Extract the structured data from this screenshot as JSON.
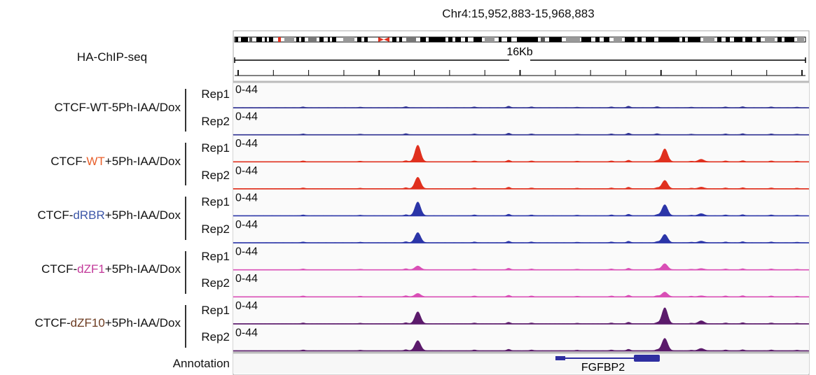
{
  "header": {
    "locus": "Chr4:15,952,883-15,968,883",
    "scale_label": "16Kb",
    "assay_label": "HA-ChIP-seq"
  },
  "annotation": {
    "label": "Annotation",
    "gene": "FGFBP2"
  },
  "colors": {
    "blue": "#2e3192",
    "red": "#e0301e",
    "rbr_blue": "#2b35a8",
    "magenta": "#d94fb6",
    "purple": "#5b1a6b",
    "wt_text": "#e8602c",
    "dRBR_text": "#3d57a8",
    "dZF1_text": "#c2399a",
    "dZF10_text": "#6b3a1f"
  },
  "groups": [
    {
      "prefix": "CTCF-",
      "highlight": "WT",
      "suffix": "-5Ph-IAA/Dox",
      "highlight_color": "#111111"
    },
    {
      "prefix": "CTCF-",
      "highlight": "WT",
      "suffix": "+5Ph-IAA/Dox",
      "highlight_color": "#e8602c"
    },
    {
      "prefix": "CTCF-",
      "highlight": "dRBR",
      "suffix": "+5Ph-IAA/Dox",
      "highlight_color": "#3d57a8"
    },
    {
      "prefix": "CTCF-",
      "highlight": "dZF1",
      "suffix": "+5Ph-IAA/Dox",
      "highlight_color": "#c2399a"
    },
    {
      "prefix": "CTCF-",
      "highlight": "dZF10",
      "suffix": "+5Ph-IAA/Dox",
      "highlight_color": "#6b3a1f"
    }
  ],
  "chart_data": {
    "type": "area",
    "x_domain": [
      15952883,
      15968883
    ],
    "track_range": "0-44",
    "ylim": [
      0,
      44
    ],
    "peaks_x": [
      15958016,
      15964939
    ],
    "tracks": [
      {
        "group": 0,
        "replicate": "Rep1",
        "range": "0-44",
        "color": "#2e3192",
        "peak_heights": [
          0,
          0
        ]
      },
      {
        "group": 0,
        "replicate": "Rep2",
        "range": "0-44",
        "color": "#2e3192",
        "peak_heights": [
          0,
          0
        ]
      },
      {
        "group": 1,
        "replicate": "Rep1",
        "range": "0-44",
        "color": "#e0301e",
        "peak_heights": [
          36,
          28
        ]
      },
      {
        "group": 1,
        "replicate": "Rep2",
        "range": "0-44",
        "color": "#e0301e",
        "peak_heights": [
          25,
          18
        ]
      },
      {
        "group": 2,
        "replicate": "Rep1",
        "range": "0-44",
        "color": "#2b35a8",
        "peak_heights": [
          30,
          24
        ]
      },
      {
        "group": 2,
        "replicate": "Rep2",
        "range": "0-44",
        "color": "#2b35a8",
        "peak_heights": [
          22,
          18
        ]
      },
      {
        "group": 3,
        "replicate": "Rep1",
        "range": "0-44",
        "color": "#d94fb6",
        "peak_heights": [
          8,
          13
        ]
      },
      {
        "group": 3,
        "replicate": "Rep2",
        "range": "0-44",
        "color": "#d94fb6",
        "peak_heights": [
          7,
          10
        ]
      },
      {
        "group": 4,
        "replicate": "Rep1",
        "range": "0-44",
        "color": "#5b1a6b",
        "peak_heights": [
          26,
          35
        ]
      },
      {
        "group": 4,
        "replicate": "Rep2",
        "range": "0-44",
        "color": "#5b1a6b",
        "peak_heights": [
          22,
          27
        ]
      }
    ]
  }
}
